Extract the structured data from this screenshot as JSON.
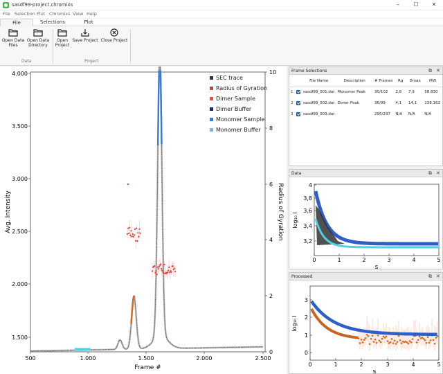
{
  "window": {
    "title": "sasdf99-project.chromixs",
    "min": "–",
    "max": "☐",
    "close": "✕"
  },
  "menu": [
    "File",
    "Selection",
    "Plot",
    "Chromixs",
    "View",
    "Help"
  ],
  "tabs": [
    {
      "label": "File",
      "active": true
    },
    {
      "label": "Selections",
      "active": false
    },
    {
      "label": "Plot",
      "active": false
    }
  ],
  "ribbon": {
    "open_data_files": "Open Data Files",
    "open_data_directory": "Open Data Directory",
    "open_project": "Open Project",
    "save_project": "Save Project",
    "close_project": "Close Project",
    "group_data": "Data",
    "group_project": "Project"
  },
  "main_plot": {
    "xlabel": "Frame #",
    "ylabel": "Avg. Intensity",
    "y2label": "Radius of Gyration",
    "x_ticks": [
      "500",
      "1.000",
      "1.500",
      "2.000",
      "2.500"
    ],
    "y_ticks": [
      "1.500",
      "2.000",
      "2.500",
      "3.000",
      "3.500",
      "4.000"
    ],
    "y2_ticks": [
      "0",
      "2",
      "4",
      "6",
      "8",
      "10"
    ],
    "legend": [
      {
        "name": "SEC trace",
        "color": "#333333"
      },
      {
        "name": "Radius of Gyration",
        "color": "#e53935"
      },
      {
        "name": "Dimer Sample",
        "color": "#e2542a"
      },
      {
        "name": "Dimer Buffer",
        "color": "#1a2a6c"
      },
      {
        "name": "Monomer Sample",
        "color": "#3a7bd5"
      },
      {
        "name": "Monomer Buffer",
        "color": "#4dd0e1"
      }
    ]
  },
  "frame_selections": {
    "title": "Frame Selections",
    "headers": [
      "File Name",
      "Description",
      "# Frames",
      "Rg",
      "Dmax",
      "MW"
    ],
    "rows": [
      {
        "num": "1",
        "file": "sasdf99_001.dat",
        "desc": "Monomer Peak",
        "frames": "30/102",
        "rg": "2,8",
        "dmax": "7,9",
        "mw": "58.830"
      },
      {
        "num": "2",
        "file": "sasdf99_002.dat",
        "desc": "Dimer Peak",
        "frames": "36/99",
        "rg": "4,1",
        "dmax": "14,1",
        "mw": "138.162"
      },
      {
        "num": "3",
        "file": "sasdf99_003.dat",
        "desc": "",
        "frames": "295/297",
        "rg": "N/A",
        "dmax": "N/A",
        "mw": "N/A"
      }
    ]
  },
  "data_panel": {
    "title": "Data",
    "xlabel": "s",
    "ylabel": "log₁₀ I",
    "x_ticks": [
      "0",
      "1",
      "2",
      "3",
      "4",
      "5"
    ],
    "y_ticks": [
      "3,2",
      "3,4",
      "3,6",
      "3,8",
      "4"
    ]
  },
  "processed_panel": {
    "title": "Processed",
    "xlabel": "s",
    "ylabel": "log₁₀ I",
    "x_ticks": [
      "0",
      "1",
      "2",
      "3",
      "4",
      "5"
    ],
    "y_ticks": [
      "0",
      "1",
      "2",
      "3"
    ]
  },
  "dock_controls": {
    "float": "⧉",
    "close": "✕"
  }
}
